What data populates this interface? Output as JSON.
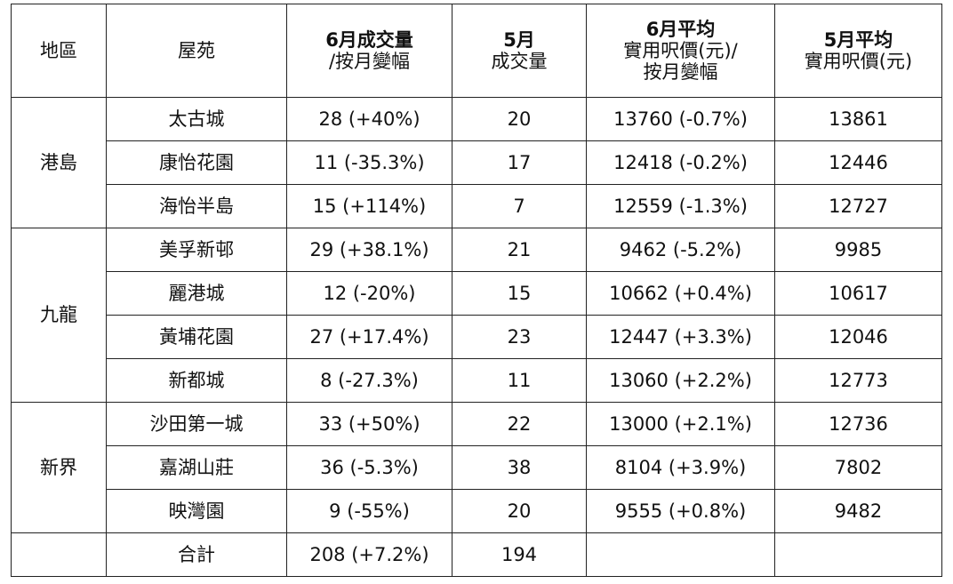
{
  "table": {
    "headers": {
      "district": "地區",
      "estate": "屋苑",
      "jun_volume_l1": "6月成交量",
      "jun_volume_l2": "/按月變幅",
      "may_volume_l1": "5月",
      "may_volume_l2": "成交量",
      "jun_price_l1": "6月平均",
      "jun_price_l2": "實用呎價(元)/",
      "jun_price_l3": "按月變幅",
      "may_price_l1": "5月平均",
      "may_price_l2": "實用呎價(元)"
    },
    "regions": [
      {
        "name": "港島",
        "rows": [
          {
            "estate": "太古城",
            "jun_volume": "28 (+40%)",
            "may_volume": "20",
            "jun_price": "13760 (-0.7%)",
            "may_price": "13861"
          },
          {
            "estate": "康怡花園",
            "jun_volume": "11 (-35.3%)",
            "may_volume": "17",
            "jun_price": "12418 (-0.2%)",
            "may_price": "12446"
          },
          {
            "estate": "海怡半島",
            "jun_volume": "15 (+114%)",
            "may_volume": "7",
            "jun_price": "12559 (-1.3%)",
            "may_price": "12727"
          }
        ]
      },
      {
        "name": "九龍",
        "rows": [
          {
            "estate": "美孚新邨",
            "jun_volume": "29 (+38.1%)",
            "may_volume": "21",
            "jun_price": "9462 (-5.2%)",
            "may_price": "9985"
          },
          {
            "estate": "麗港城",
            "jun_volume": "12 (-20%)",
            "may_volume": "15",
            "jun_price": "10662 (+0.4%)",
            "may_price": "10617"
          },
          {
            "estate": "黃埔花園",
            "jun_volume": "27 (+17.4%)",
            "may_volume": "23",
            "jun_price": "12447 (+3.3%)",
            "may_price": "12046"
          },
          {
            "estate": "新都城",
            "jun_volume": "8 (-27.3%)",
            "may_volume": "11",
            "jun_price": "13060 (+2.2%)",
            "may_price": "12773"
          }
        ]
      },
      {
        "name": "新界",
        "rows": [
          {
            "estate": "沙田第一城",
            "jun_volume": "33 (+50%)",
            "may_volume": "22",
            "jun_price": "13000 (+2.1%)",
            "may_price": "12736"
          },
          {
            "estate": "嘉湖山莊",
            "jun_volume": "36 (-5.3%)",
            "may_volume": "38",
            "jun_price": "8104 (+3.9%)",
            "may_price": "7802"
          },
          {
            "estate": "映灣園",
            "jun_volume": "9 (-55%)",
            "may_volume": "20",
            "jun_price": "9555 (+0.8%)",
            "may_price": "9482"
          }
        ]
      }
    ],
    "total": {
      "label": "合計",
      "jun_volume": "208 (+7.2%)",
      "may_volume": "194"
    }
  }
}
